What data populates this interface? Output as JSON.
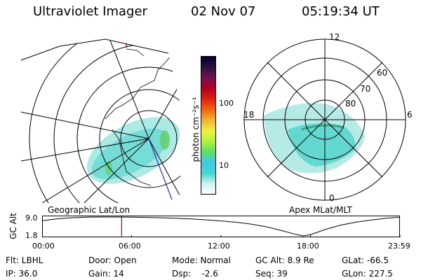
{
  "header": {
    "instrument": "Ultraviolet Imager",
    "date": "02 Nov 07",
    "time": "05:19:34 UT"
  },
  "left_panel": {
    "caption": "Geographic Lat/Lon"
  },
  "right_panel": {
    "caption": "Apex MLat/MLT",
    "mlt_labels": [
      "12",
      "18",
      "6",
      "0"
    ],
    "lat_labels": [
      "60",
      "70",
      "80"
    ]
  },
  "colorbar": {
    "unit_label": "photon cm⁻²s⁻¹",
    "ticks": [
      "100",
      "10"
    ],
    "colors": [
      "#ffffff",
      "#c8f0f0",
      "#40d8d0",
      "#40c8e8",
      "#60e060",
      "#b0f040",
      "#f0f040",
      "#f0b030",
      "#f06010",
      "#e02010",
      "#b00020",
      "#701050",
      "#301040",
      "#000030"
    ]
  },
  "chart_data": {
    "type": "line",
    "title": "",
    "ylabel": "GC Alt",
    "yticks": [
      "9.0",
      "1.8"
    ],
    "ylim": [
      1.8,
      9.0
    ],
    "xticks": [
      "00:00",
      "06:00",
      "12:00",
      "18:00",
      "23:59"
    ],
    "x_hours": [
      0,
      1,
      2,
      3,
      4,
      5,
      6,
      7,
      8,
      9,
      10,
      11,
      12,
      13,
      14,
      15,
      16,
      17,
      17.5,
      18,
      19,
      20,
      21,
      22,
      23,
      23.98
    ],
    "y": [
      7.6,
      8.3,
      8.7,
      8.95,
      9.0,
      9.0,
      8.95,
      8.85,
      8.7,
      8.5,
      8.25,
      7.9,
      7.5,
      7.0,
      6.3,
      5.3,
      3.9,
      2.4,
      1.8,
      2.3,
      4.3,
      5.9,
      7.0,
      7.8,
      8.5,
      8.95
    ],
    "current_time_hours": 5.33,
    "line_color": "#000000",
    "marker_color": "#c00000"
  },
  "footer": {
    "filter": "Flt: LBHL",
    "ip": "IP: 36.0",
    "door": "Door: Open",
    "gain": "Gain: 14",
    "mode": "Mode: Normal",
    "dsp": "Dsp:    -2.6",
    "gc_alt": "GC Alt: 8.9 Re",
    "seq": "Seq: 39",
    "glat": "GLat: -66.5",
    "glon": "GLon: 227.5"
  }
}
